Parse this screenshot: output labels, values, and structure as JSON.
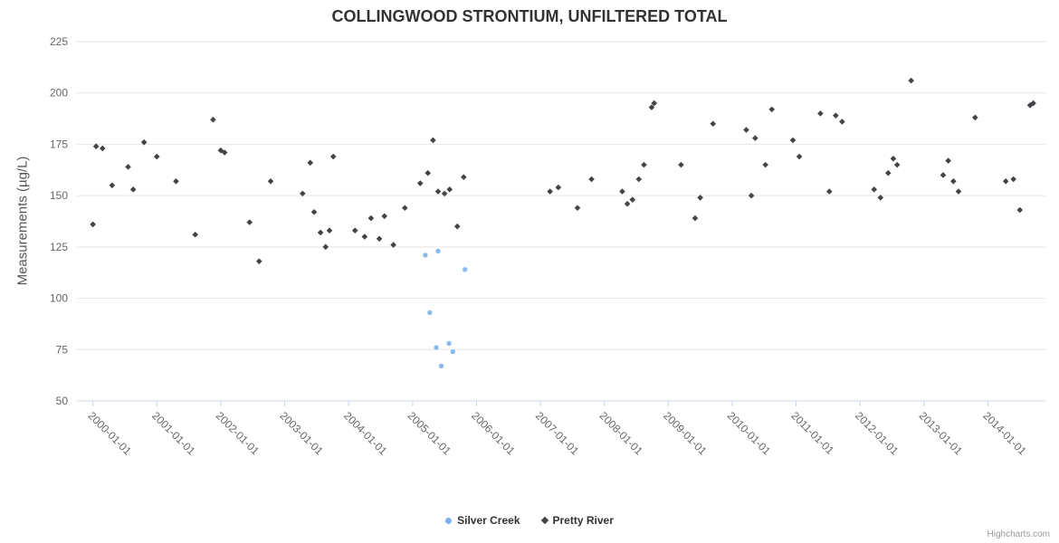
{
  "title": "COLLINGWOOD STRONTIUM, UNFILTERED TOTAL",
  "credits": "Highcharts.com",
  "colors": {
    "grid": "#e6e6e6",
    "axis_line": "#ccd6eb",
    "axis_label": "#666666",
    "title": "#333333",
    "silver_creek": "#7cb5ec",
    "pretty_river": "#434348"
  },
  "y_axis": {
    "label": "Measurements (µg/L)",
    "ticks": [
      50,
      75,
      100,
      125,
      150,
      175,
      200,
      225
    ]
  },
  "x_axis": {
    "ticks": [
      {
        "year": 2000,
        "label": "2000-01-01"
      },
      {
        "year": 2001,
        "label": "2001-01-01"
      },
      {
        "year": 2002,
        "label": "2002-01-01"
      },
      {
        "year": 2003,
        "label": "2003-01-01"
      },
      {
        "year": 2004,
        "label": "2004-01-01"
      },
      {
        "year": 2005,
        "label": "2005-01-01"
      },
      {
        "year": 2006,
        "label": "2006-01-01"
      },
      {
        "year": 2007,
        "label": "2007-01-01"
      },
      {
        "year": 2008,
        "label": "2008-01-01"
      },
      {
        "year": 2009,
        "label": "2009-01-01"
      },
      {
        "year": 2010,
        "label": "2010-01-01"
      },
      {
        "year": 2011,
        "label": "2011-01-01"
      },
      {
        "year": 2012,
        "label": "2012-01-01"
      },
      {
        "year": 2013,
        "label": "2013-01-01"
      },
      {
        "year": 2014,
        "label": "2014-01-01"
      }
    ]
  },
  "legend": [
    {
      "name": "Silver Creek",
      "marker": "circle",
      "color": "#7cb5ec"
    },
    {
      "name": "Pretty River",
      "marker": "diamond",
      "color": "#434348"
    }
  ],
  "chart_data": {
    "type": "scatter",
    "title": "COLLINGWOOD STRONTIUM, UNFILTERED TOTAL",
    "xlabel": "",
    "ylabel": "Measurements (µg/L)",
    "ylim": [
      50,
      225
    ],
    "xlim": [
      1999.75,
      2014.9
    ],
    "grid": true,
    "legend_position": "bottom-center",
    "series": [
      {
        "name": "Silver Creek",
        "marker": "circle",
        "color": "#7cb5ec",
        "points": [
          [
            2005.2,
            121
          ],
          [
            2005.27,
            93
          ],
          [
            2005.37,
            76
          ],
          [
            2005.4,
            123
          ],
          [
            2005.45,
            67
          ],
          [
            2005.57,
            78
          ],
          [
            2005.63,
            74
          ],
          [
            2005.82,
            114
          ]
        ]
      },
      {
        "name": "Pretty River",
        "marker": "diamond",
        "color": "#434348",
        "points": [
          [
            2000.0,
            136
          ],
          [
            2000.05,
            174
          ],
          [
            2000.15,
            173
          ],
          [
            2000.3,
            155
          ],
          [
            2000.55,
            164
          ],
          [
            2000.63,
            153
          ],
          [
            2000.8,
            176
          ],
          [
            2001.0,
            169
          ],
          [
            2001.3,
            157
          ],
          [
            2001.6,
            131
          ],
          [
            2001.88,
            187
          ],
          [
            2002.0,
            172
          ],
          [
            2002.06,
            171
          ],
          [
            2002.45,
            137
          ],
          [
            2002.6,
            118
          ],
          [
            2002.78,
            157
          ],
          [
            2003.28,
            151
          ],
          [
            2003.4,
            166
          ],
          [
            2003.46,
            142
          ],
          [
            2003.56,
            132
          ],
          [
            2003.64,
            125
          ],
          [
            2003.7,
            133
          ],
          [
            2003.76,
            169
          ],
          [
            2004.1,
            133
          ],
          [
            2004.25,
            130
          ],
          [
            2004.35,
            139
          ],
          [
            2004.48,
            129
          ],
          [
            2004.56,
            140
          ],
          [
            2004.7,
            126
          ],
          [
            2004.88,
            144
          ],
          [
            2005.12,
            156
          ],
          [
            2005.24,
            161
          ],
          [
            2005.32,
            177
          ],
          [
            2005.4,
            152
          ],
          [
            2005.5,
            151
          ],
          [
            2005.58,
            153
          ],
          [
            2005.7,
            135
          ],
          [
            2005.8,
            159
          ],
          [
            2007.15,
            152
          ],
          [
            2007.28,
            154
          ],
          [
            2007.58,
            144
          ],
          [
            2007.8,
            158
          ],
          [
            2008.28,
            152
          ],
          [
            2008.36,
            146
          ],
          [
            2008.44,
            148
          ],
          [
            2008.54,
            158
          ],
          [
            2008.62,
            165
          ],
          [
            2008.74,
            193
          ],
          [
            2008.78,
            195
          ],
          [
            2009.2,
            165
          ],
          [
            2009.42,
            139
          ],
          [
            2009.5,
            149
          ],
          [
            2009.7,
            185
          ],
          [
            2010.22,
            182
          ],
          [
            2010.3,
            150
          ],
          [
            2010.36,
            178
          ],
          [
            2010.52,
            165
          ],
          [
            2010.62,
            192
          ],
          [
            2010.95,
            177
          ],
          [
            2011.05,
            169
          ],
          [
            2011.38,
            190
          ],
          [
            2011.52,
            152
          ],
          [
            2011.62,
            189
          ],
          [
            2011.72,
            186
          ],
          [
            2012.22,
            153
          ],
          [
            2012.32,
            149
          ],
          [
            2012.44,
            161
          ],
          [
            2012.52,
            168
          ],
          [
            2012.58,
            165
          ],
          [
            2012.8,
            206
          ],
          [
            2013.3,
            160
          ],
          [
            2013.38,
            167
          ],
          [
            2013.46,
            157
          ],
          [
            2013.54,
            152
          ],
          [
            2013.8,
            188
          ],
          [
            2014.28,
            157
          ],
          [
            2014.4,
            158
          ],
          [
            2014.5,
            143
          ],
          [
            2014.66,
            194
          ],
          [
            2014.71,
            195
          ]
        ]
      }
    ]
  }
}
